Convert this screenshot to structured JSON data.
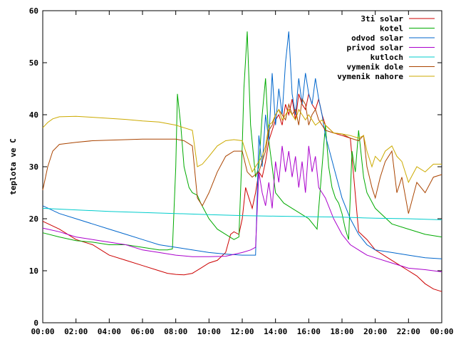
{
  "chart_data": {
    "type": "line",
    "ylabel": "teplota ve C",
    "xlim": [
      0,
      24
    ],
    "ylim": [
      0,
      60
    ],
    "x_ticks": [
      {
        "value": 0,
        "label": "00:00"
      },
      {
        "value": 2,
        "label": "02:00"
      },
      {
        "value": 4,
        "label": "04:00"
      },
      {
        "value": 6,
        "label": "06:00"
      },
      {
        "value": 8,
        "label": "08:00"
      },
      {
        "value": 10,
        "label": "10:00"
      },
      {
        "value": 12,
        "label": "12:00"
      },
      {
        "value": 14,
        "label": "14:00"
      },
      {
        "value": 16,
        "label": "16:00"
      },
      {
        "value": 18,
        "label": "18:00"
      },
      {
        "value": 20,
        "label": "20:00"
      },
      {
        "value": 22,
        "label": "22:00"
      },
      {
        "value": 24,
        "label": "00:00"
      }
    ],
    "y_ticks": [
      {
        "value": 0,
        "label": "0"
      },
      {
        "value": 10,
        "label": "10"
      },
      {
        "value": 20,
        "label": "20"
      },
      {
        "value": 30,
        "label": "30"
      },
      {
        "value": 40,
        "label": "40"
      },
      {
        "value": 50,
        "label": "50"
      },
      {
        "value": 60,
        "label": "60"
      }
    ],
    "grid": false,
    "legend_position": "top-right",
    "series": [
      {
        "name": "3ti solar",
        "color": "#cc0000",
        "x": [
          0,
          1,
          2,
          3,
          4,
          5,
          6,
          7,
          7.5,
          8,
          8.5,
          9,
          9.5,
          10,
          10.5,
          11,
          11.3,
          11.5,
          11.8,
          12,
          12.2,
          12.4,
          12.6,
          12.8,
          13,
          13.2,
          13.4,
          13.6,
          13.8,
          14,
          14.2,
          14.4,
          14.6,
          14.8,
          15,
          15.2,
          15.4,
          15.6,
          15.8,
          16,
          16.2,
          16.4,
          16.6,
          16.8,
          17,
          17.5,
          18,
          18.5,
          19,
          19.5,
          20,
          20.5,
          21,
          21.5,
          22,
          22.5,
          23,
          23.5,
          24
        ],
        "y": [
          19.5,
          18,
          16,
          15,
          13,
          12,
          11,
          10,
          9.5,
          9.3,
          9.2,
          9.5,
          10.5,
          11.5,
          12,
          13.5,
          17,
          17.5,
          17,
          20,
          26,
          24,
          22,
          25,
          29,
          28,
          31,
          35,
          37,
          39,
          40,
          38,
          42,
          40,
          43,
          39,
          44,
          42,
          41,
          44,
          42,
          41,
          43,
          40,
          38,
          36.5,
          36,
          35.5,
          17.5,
          16,
          14,
          13,
          12,
          11,
          10,
          9,
          7.5,
          6.5,
          6
        ]
      },
      {
        "name": "kotel",
        "color": "#00aa00",
        "x": [
          0,
          1,
          2,
          3,
          4,
          5,
          6,
          7,
          7.5,
          7.8,
          8,
          8.1,
          8.3,
          8.5,
          8.8,
          9,
          9.3,
          9.5,
          10,
          10.5,
          11,
          11.5,
          11.8,
          12,
          12.1,
          12.3,
          12.5,
          12.8,
          13,
          13.2,
          13.4,
          13.6,
          13.8,
          14,
          14.5,
          15,
          15.5,
          16,
          16.5,
          17,
          17.2,
          17.4,
          17.6,
          17.8,
          18,
          18.2,
          18.4,
          18.6,
          18.8,
          19,
          19.3,
          19.5,
          20,
          21,
          22,
          23,
          24
        ],
        "y": [
          17.3,
          16.5,
          15.8,
          15.5,
          15,
          15,
          14.5,
          14,
          14,
          14.2,
          30,
          44,
          38,
          30,
          26,
          25,
          24.5,
          23,
          20,
          18,
          17,
          16,
          16.5,
          34,
          45,
          56,
          38,
          28,
          30,
          40,
          47,
          35,
          30,
          25,
          23,
          22,
          21,
          20,
          18,
          38,
          30,
          26,
          24,
          23,
          21,
          18,
          16,
          33,
          29,
          37,
          28,
          25,
          22,
          19,
          18,
          17,
          16.5
        ]
      },
      {
        "name": "odvod solar",
        "color": "#0066cc",
        "x": [
          0,
          1,
          2,
          3,
          4,
          5,
          6,
          7,
          8,
          9,
          10,
          11,
          12,
          12.5,
          12.8,
          13,
          13.2,
          13.4,
          13.6,
          13.8,
          14,
          14.2,
          14.4,
          14.6,
          14.8,
          15,
          15.2,
          15.4,
          15.6,
          15.8,
          16,
          16.2,
          16.4,
          16.6,
          16.8,
          17,
          17.5,
          18,
          18.5,
          19,
          19.5,
          20,
          21,
          22,
          23,
          24
        ],
        "y": [
          22.5,
          21,
          20,
          19,
          18,
          17,
          16,
          15,
          14.5,
          14,
          13.5,
          13.2,
          13,
          13,
          13,
          36,
          30,
          40,
          35,
          48,
          38,
          45,
          40,
          50,
          56,
          44,
          40,
          47,
          42,
          48,
          44,
          42,
          47,
          43,
          40,
          36,
          30,
          24,
          20,
          17,
          15,
          14,
          13.5,
          13,
          12.5,
          12.3
        ]
      },
      {
        "name": "privod solar",
        "color": "#aa00cc",
        "x": [
          0,
          1,
          2,
          3,
          4,
          5,
          6,
          7,
          8,
          9,
          10,
          11,
          12,
          12.5,
          12.8,
          13,
          13.2,
          13.4,
          13.6,
          13.8,
          14,
          14.2,
          14.4,
          14.6,
          14.8,
          15,
          15.2,
          15.4,
          15.6,
          15.8,
          16,
          16.2,
          16.4,
          16.6,
          16.8,
          17,
          17.5,
          18,
          18.5,
          19,
          19.5,
          20,
          21,
          22,
          23,
          24
        ],
        "y": [
          18.2,
          17.5,
          16.5,
          16,
          15.5,
          15,
          14,
          13.5,
          13,
          12.7,
          12.7,
          12.8,
          13.5,
          14,
          14.5,
          29,
          25,
          22.5,
          27,
          22,
          31,
          27,
          34,
          29,
          33,
          28,
          32,
          26,
          31,
          25,
          34,
          29,
          32,
          26,
          25,
          24,
          20,
          17,
          15,
          14,
          13,
          12.5,
          11.5,
          10.5,
          10.2,
          9.8
        ]
      },
      {
        "name": "kutloch",
        "color": "#00cccc",
        "x": [
          0,
          2,
          4,
          6,
          8,
          10,
          12,
          14,
          16,
          18,
          20,
          22,
          24
        ],
        "y": [
          22,
          21.7,
          21.4,
          21.2,
          21,
          20.8,
          20.6,
          20.5,
          20.4,
          20.3,
          20.1,
          20,
          19.8
        ]
      },
      {
        "name": "vymenik dole",
        "color": "#aa4400",
        "x": [
          0,
          0.3,
          0.6,
          1,
          2,
          3,
          4,
          5,
          6,
          7,
          8,
          8.5,
          9,
          9.3,
          9.6,
          10,
          10.5,
          11,
          11.5,
          12,
          12.3,
          12.6,
          13,
          13.2,
          13.4,
          13.6,
          13.8,
          14,
          14.2,
          14.4,
          14.6,
          14.8,
          15,
          15.2,
          15.4,
          15.6,
          15.8,
          16,
          16.2,
          16.4,
          16.6,
          16.8,
          17,
          17.5,
          18,
          18.5,
          19,
          19.3,
          19.5,
          19.8,
          20,
          20.3,
          20.6,
          21,
          21.3,
          21.6,
          22,
          22.5,
          23,
          23.5,
          24
        ],
        "y": [
          25.5,
          30,
          33,
          34.3,
          34.7,
          35,
          35.1,
          35.2,
          35.3,
          35.3,
          35.3,
          35,
          34,
          24,
          22.5,
          25,
          29,
          32,
          33,
          33,
          29,
          28,
          29,
          31,
          33,
          37,
          38,
          40,
          41,
          40,
          39,
          42,
          40,
          41,
          38,
          43,
          42,
          38,
          40,
          41,
          39,
          38,
          37,
          36.5,
          36.3,
          35.5,
          35,
          36,
          30,
          26,
          24,
          28,
          31,
          33,
          25,
          28,
          21,
          27,
          25,
          28,
          28.5
        ]
      },
      {
        "name": "vymenik nahore",
        "color": "#ccaa00",
        "x": [
          0,
          0.3,
          0.6,
          1,
          2,
          3,
          4,
          5,
          6,
          7,
          8,
          8.5,
          9,
          9.3,
          9.6,
          10,
          10.5,
          11,
          11.5,
          12,
          12.3,
          12.6,
          13,
          13.2,
          13.4,
          13.6,
          13.8,
          14,
          14.2,
          14.4,
          14.6,
          14.8,
          15,
          15.2,
          15.4,
          15.6,
          15.8,
          16,
          16.2,
          16.4,
          16.6,
          16.8,
          17,
          17.5,
          18,
          18.5,
          19,
          19.3,
          19.5,
          19.8,
          20,
          20.3,
          20.6,
          21,
          21.3,
          21.6,
          22,
          22.5,
          23,
          23.5,
          24
        ],
        "y": [
          37.5,
          38.5,
          39.2,
          39.6,
          39.7,
          39.5,
          39.3,
          39.1,
          38.8,
          38.6,
          38,
          37.5,
          37,
          30,
          30.5,
          32,
          34,
          35,
          35.2,
          35,
          32,
          29,
          31,
          32,
          34,
          38,
          38.5,
          40,
          41,
          39,
          40,
          41,
          40,
          39,
          41,
          40,
          39,
          40,
          39,
          38,
          38.5,
          39,
          38,
          36.5,
          36.3,
          36,
          35.5,
          36,
          33,
          30,
          32,
          31,
          33,
          34,
          32,
          31,
          27,
          30,
          29,
          30.5,
          30.5
        ]
      }
    ]
  }
}
